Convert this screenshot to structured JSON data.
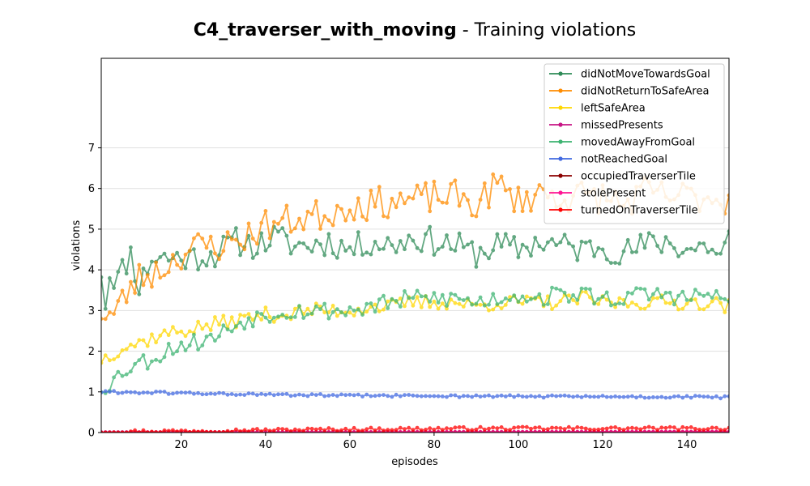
{
  "chart_data": {
    "type": "line",
    "title_bold": "C4_traverser_with_moving",
    "title_rest": " - Training violations",
    "xlabel": "episodes",
    "ylabel": "violations",
    "xlim": [
      1,
      150
    ],
    "ylim": [
      0,
      9.2
    ],
    "xticks": [
      20,
      40,
      60,
      80,
      100,
      120,
      140
    ],
    "yticks": [
      0,
      1,
      2,
      3,
      4,
      5,
      6,
      7
    ],
    "grid": "horizontal",
    "legend_position": "top-right",
    "series": [
      {
        "name": "didNotMoveTowardsGoal",
        "color": "#2e8b57",
        "ctrl": [
          [
            1,
            4.0
          ],
          [
            2,
            3.2
          ],
          [
            3,
            3.9
          ],
          [
            5,
            3.8
          ],
          [
            8,
            4.4
          ],
          [
            10,
            3.6
          ],
          [
            13,
            4.3
          ],
          [
            18,
            4.3
          ],
          [
            22,
            4.3
          ],
          [
            28,
            4.4
          ],
          [
            33,
            4.7
          ],
          [
            38,
            4.6
          ],
          [
            42,
            4.8
          ],
          [
            47,
            4.6
          ],
          [
            50,
            4.6
          ],
          [
            55,
            4.7
          ],
          [
            60,
            4.5
          ],
          [
            65,
            4.7
          ],
          [
            70,
            4.6
          ],
          [
            75,
            4.8
          ],
          [
            80,
            4.7
          ],
          [
            85,
            4.6
          ],
          [
            90,
            4.4
          ],
          [
            95,
            4.6
          ],
          [
            100,
            4.5
          ],
          [
            105,
            4.7
          ],
          [
            110,
            4.6
          ],
          [
            115,
            4.5
          ],
          [
            120,
            4.6
          ],
          [
            125,
            4.4
          ],
          [
            130,
            4.6
          ],
          [
            135,
            4.7
          ],
          [
            140,
            4.5
          ],
          [
            145,
            4.6
          ],
          [
            148,
            4.3
          ],
          [
            150,
            4.8
          ]
        ],
        "noise": 0.35,
        "seed": 11
      },
      {
        "name": "didNotReturnToSafeArea",
        "color": "#ff8c00",
        "ctrl": [
          [
            1,
            3.0
          ],
          [
            2,
            2.9
          ],
          [
            4,
            2.9
          ],
          [
            7,
            3.4
          ],
          [
            10,
            3.8
          ],
          [
            15,
            4.0
          ],
          [
            20,
            4.4
          ],
          [
            25,
            4.6
          ],
          [
            30,
            4.6
          ],
          [
            35,
            4.8
          ],
          [
            40,
            5.1
          ],
          [
            45,
            5.2
          ],
          [
            50,
            5.3
          ],
          [
            55,
            5.4
          ],
          [
            60,
            5.6
          ],
          [
            65,
            5.6
          ],
          [
            70,
            5.7
          ],
          [
            75,
            5.7
          ],
          [
            80,
            5.8
          ],
          [
            85,
            5.8
          ],
          [
            90,
            5.6
          ],
          [
            95,
            6.1
          ],
          [
            100,
            5.7
          ],
          [
            105,
            5.9
          ],
          [
            110,
            5.8
          ],
          [
            115,
            5.8
          ],
          [
            120,
            5.8
          ],
          [
            125,
            5.6
          ],
          [
            130,
            5.9
          ],
          [
            135,
            5.8
          ],
          [
            140,
            5.8
          ],
          [
            145,
            5.8
          ],
          [
            150,
            5.7
          ]
        ],
        "noise": 0.4,
        "seed": 23
      },
      {
        "name": "leftSafeArea",
        "color": "#ffd700",
        "ctrl": [
          [
            1,
            1.8
          ],
          [
            3,
            1.9
          ],
          [
            6,
            2.1
          ],
          [
            10,
            2.2
          ],
          [
            15,
            2.4
          ],
          [
            20,
            2.5
          ],
          [
            25,
            2.6
          ],
          [
            30,
            2.7
          ],
          [
            35,
            2.8
          ],
          [
            40,
            2.9
          ],
          [
            45,
            2.9
          ],
          [
            50,
            3.0
          ],
          [
            55,
            3.0
          ],
          [
            60,
            3.0
          ],
          [
            65,
            3.1
          ],
          [
            70,
            3.1
          ],
          [
            75,
            3.2
          ],
          [
            80,
            3.2
          ],
          [
            85,
            3.2
          ],
          [
            90,
            3.1
          ],
          [
            95,
            3.2
          ],
          [
            100,
            3.2
          ],
          [
            105,
            3.2
          ],
          [
            110,
            3.2
          ],
          [
            115,
            3.3
          ],
          [
            120,
            3.2
          ],
          [
            125,
            3.2
          ],
          [
            130,
            3.2
          ],
          [
            135,
            3.2
          ],
          [
            140,
            3.2
          ],
          [
            145,
            3.2
          ],
          [
            150,
            3.1
          ]
        ],
        "noise": 0.18,
        "seed": 37
      },
      {
        "name": "missedPresents",
        "color": "#c71585",
        "ctrl": [
          [
            1,
            0.01
          ],
          [
            150,
            0.02
          ]
        ],
        "noise": 0.0,
        "seed": 41
      },
      {
        "name": "movedAwayFromGoal",
        "color": "#3cb371",
        "ctrl": [
          [
            1,
            1.1
          ],
          [
            3,
            1.2
          ],
          [
            6,
            1.5
          ],
          [
            9,
            1.7
          ],
          [
            13,
            1.8
          ],
          [
            18,
            2.1
          ],
          [
            22,
            2.2
          ],
          [
            27,
            2.3
          ],
          [
            32,
            2.6
          ],
          [
            36,
            2.8
          ],
          [
            40,
            2.9
          ],
          [
            45,
            3.0
          ],
          [
            50,
            3.0
          ],
          [
            55,
            3.0
          ],
          [
            60,
            3.0
          ],
          [
            65,
            3.1
          ],
          [
            70,
            3.2
          ],
          [
            75,
            3.3
          ],
          [
            80,
            3.3
          ],
          [
            85,
            3.3
          ],
          [
            90,
            3.2
          ],
          [
            95,
            3.3
          ],
          [
            100,
            3.4
          ],
          [
            105,
            3.3
          ],
          [
            110,
            3.4
          ],
          [
            115,
            3.4
          ],
          [
            120,
            3.3
          ],
          [
            125,
            3.3
          ],
          [
            130,
            3.4
          ],
          [
            135,
            3.4
          ],
          [
            140,
            3.3
          ],
          [
            145,
            3.4
          ],
          [
            150,
            3.2
          ]
        ],
        "noise": 0.22,
        "seed": 53
      },
      {
        "name": "notReachedGoal",
        "color": "#4169e1",
        "ctrl": [
          [
            1,
            1.0
          ],
          [
            20,
            0.97
          ],
          [
            40,
            0.93
          ],
          [
            60,
            0.91
          ],
          [
            80,
            0.9
          ],
          [
            100,
            0.89
          ],
          [
            120,
            0.88
          ],
          [
            150,
            0.87
          ]
        ],
        "noise": 0.03,
        "seed": 61
      },
      {
        "name": "occupiedTraverserTile",
        "color": "#8b0000",
        "ctrl": [
          [
            1,
            0.0
          ],
          [
            150,
            0.01
          ]
        ],
        "noise": 0.0,
        "seed": 71
      },
      {
        "name": "stolePresent",
        "color": "#ff1493",
        "ctrl": [
          [
            1,
            0.0
          ],
          [
            150,
            0.02
          ]
        ],
        "noise": 0.0,
        "seed": 83
      },
      {
        "name": "turnedOnTraverserTile",
        "color": "#ff0000",
        "ctrl": [
          [
            1,
            0.02
          ],
          [
            30,
            0.05
          ],
          [
            60,
            0.08
          ],
          [
            90,
            0.1
          ],
          [
            120,
            0.1
          ],
          [
            150,
            0.1
          ]
        ],
        "noise": 0.04,
        "seed": 97
      }
    ]
  }
}
